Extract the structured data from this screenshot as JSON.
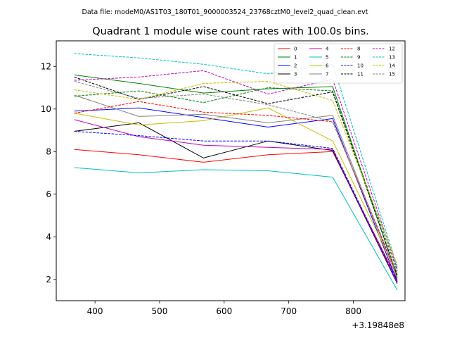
{
  "chart_data": {
    "type": "line",
    "suptitle": "Data file: modeM0/AS1T03_180T01_9000003524_23768cztM0_level2_quad_clean.evt",
    "title": "Quadrant 1 module wise count rates with 100.0s bins.",
    "xlabel": "",
    "ylabel": "",
    "x_offset_label": "+3.19848e8",
    "xlim": [
      340,
      880
    ],
    "ylim": [
      1.0,
      13.2
    ],
    "xticks": [
      400,
      500,
      600,
      700,
      800
    ],
    "yticks": [
      2,
      4,
      6,
      8,
      10,
      12
    ],
    "x": [
      368,
      468,
      568,
      668,
      768,
      868
    ],
    "grid": false,
    "legend_position": "top-right",
    "series": [
      {
        "name": "0",
        "color": "#ff0000",
        "dash": "solid",
        "values": [
          8.1,
          7.85,
          7.5,
          7.85,
          8.0,
          2.0
        ]
      },
      {
        "name": "1",
        "color": "#008000",
        "dash": "solid",
        "values": [
          11.6,
          11.2,
          10.75,
          10.95,
          11.05,
          2.1
        ]
      },
      {
        "name": "2",
        "color": "#0000ff",
        "dash": "solid",
        "values": [
          9.9,
          10.05,
          9.6,
          9.15,
          9.55,
          1.9
        ]
      },
      {
        "name": "3",
        "color": "#000000",
        "dash": "solid",
        "values": [
          8.95,
          9.35,
          7.7,
          8.5,
          8.05,
          1.8
        ]
      },
      {
        "name": "4",
        "color": "#bf00bf",
        "dash": "solid",
        "values": [
          9.5,
          8.7,
          8.3,
          8.2,
          8.1,
          1.85
        ]
      },
      {
        "name": "5",
        "color": "#00bfbf",
        "dash": "solid",
        "values": [
          7.25,
          7.0,
          7.15,
          7.1,
          6.8,
          1.5
        ]
      },
      {
        "name": "6",
        "color": "#bfbf00",
        "dash": "solid",
        "values": [
          9.8,
          9.25,
          9.45,
          10.05,
          8.5,
          2.3
        ]
      },
      {
        "name": "7",
        "color": "#808080",
        "dash": "solid",
        "values": [
          10.65,
          9.65,
          9.75,
          9.35,
          9.7,
          2.05
        ]
      },
      {
        "name": "8",
        "color": "#ff0000",
        "dash": "dashed",
        "values": [
          9.8,
          10.35,
          9.85,
          9.7,
          9.4,
          2.2
        ]
      },
      {
        "name": "9",
        "color": "#008000",
        "dash": "dashed",
        "values": [
          10.6,
          10.85,
          10.3,
          11.0,
          10.85,
          2.4
        ]
      },
      {
        "name": "10",
        "color": "#0000ff",
        "dash": "dashed",
        "values": [
          8.95,
          8.75,
          8.5,
          8.5,
          8.15,
          1.9
        ]
      },
      {
        "name": "11",
        "color": "#000000",
        "dash": "dashed",
        "values": [
          11.5,
          10.45,
          11.05,
          10.25,
          10.8,
          2.2
        ]
      },
      {
        "name": "12",
        "color": "#bf00bf",
        "dash": "dashed",
        "values": [
          11.35,
          11.5,
          11.8,
          10.7,
          11.4,
          2.5
        ]
      },
      {
        "name": "13",
        "color": "#00bfbf",
        "dash": "dashed",
        "values": [
          12.6,
          12.4,
          12.1,
          11.65,
          12.1,
          2.6
        ]
      },
      {
        "name": "14",
        "color": "#bfbf00",
        "dash": "dashed",
        "values": [
          10.9,
          10.45,
          11.2,
          11.3,
          10.4,
          2.7
        ]
      },
      {
        "name": "15",
        "color": "#808080",
        "dash": "dashed",
        "values": [
          11.3,
          10.5,
          10.7,
          10.2,
          9.4,
          2.3
        ]
      }
    ]
  }
}
